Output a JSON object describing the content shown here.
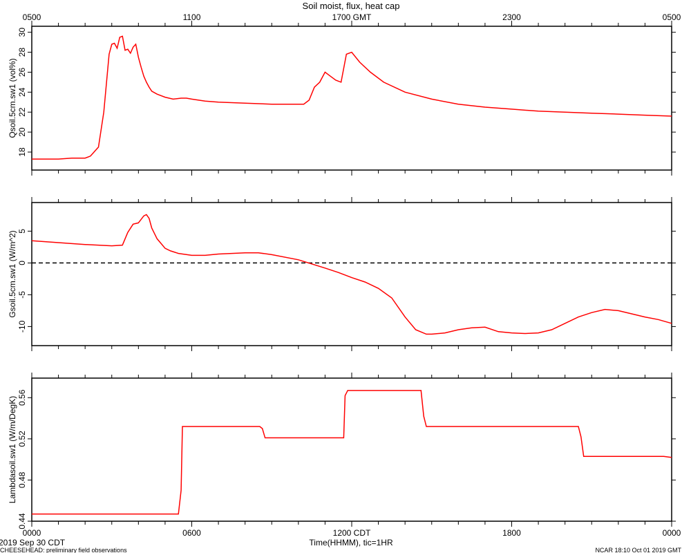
{
  "title": "Soil moist, flux, heat cap",
  "top_axis": {
    "ticks": [
      "0500",
      "1100",
      "1700 GMT",
      "2300",
      "0500"
    ]
  },
  "bottom_axis": {
    "ticks": [
      "0000",
      "0600",
      "1200 CDT",
      "1800",
      "0000"
    ],
    "label": "Time(HHMM), tic=1HR"
  },
  "footer": {
    "date": "2019 Sep 30 CDT",
    "project": "CHEESEHEAD: preliminary field observations",
    "stamp": "NCAR 18:10 Oct 01 2019 GMT"
  },
  "colors": {
    "series": "#ff0000",
    "axes": "#000000"
  },
  "chart_data": [
    {
      "type": "line",
      "ylabel": "Qsoil.5cm.sw1 (vol%)",
      "ylim": [
        16.2,
        30.6
      ],
      "yticks": [
        18,
        20,
        22,
        24,
        26,
        28,
        30
      ],
      "yticklabels": [
        "18",
        "20",
        "22",
        "24",
        "26",
        "28",
        "30"
      ],
      "xlim": [
        0,
        24
      ],
      "x": [
        0,
        1,
        1.5,
        2,
        2.2,
        2.5,
        2.7,
        2.9,
        3.0,
        3.1,
        3.2,
        3.3,
        3.4,
        3.5,
        3.6,
        3.7,
        3.8,
        3.9,
        4.0,
        4.1,
        4.2,
        4.3,
        4.4,
        4.5,
        4.7,
        5.0,
        5.3,
        5.6,
        5.8,
        6.0,
        6.5,
        7.0,
        8.0,
        9.0,
        9.8,
        10.2,
        10.4,
        10.6,
        10.8,
        11.0,
        11.2,
        11.4,
        11.6,
        11.8,
        12.0,
        12.3,
        12.7,
        13.2,
        14,
        15,
        16,
        17,
        18,
        19,
        20,
        21,
        22,
        23,
        24
      ],
      "series": [
        {
          "values": [
            17.3,
            17.3,
            17.4,
            17.4,
            17.6,
            18.5,
            22.0,
            27.8,
            28.8,
            28.9,
            28.4,
            29.5,
            29.6,
            28.2,
            28.3,
            27.9,
            28.5,
            28.8,
            27.5,
            26.5,
            25.6,
            25.0,
            24.5,
            24.1,
            23.8,
            23.5,
            23.3,
            23.4,
            23.4,
            23.3,
            23.1,
            23.0,
            22.9,
            22.8,
            22.8,
            22.8,
            23.2,
            24.5,
            25.0,
            26.0,
            25.6,
            25.2,
            25.0,
            27.8,
            28.0,
            27.0,
            26.0,
            25.0,
            24.0,
            23.3,
            22.8,
            22.5,
            22.3,
            22.1,
            22.0,
            21.9,
            21.8,
            21.7,
            21.6
          ]
        }
      ]
    },
    {
      "type": "line",
      "ylabel": "Gsoil.5cm.sw1 (W/m^2)",
      "ylim": [
        -13,
        9.5
      ],
      "yticks": [
        -10,
        -5,
        0,
        5
      ],
      "yticklabels": [
        "-10",
        "-5",
        "0",
        "5"
      ],
      "reference_line": 0,
      "xlim": [
        0,
        24
      ],
      "x": [
        0,
        1,
        2,
        3,
        3.4,
        3.6,
        3.8,
        4.0,
        4.2,
        4.3,
        4.4,
        4.5,
        4.7,
        4.9,
        5.0,
        5.2,
        5.5,
        6.0,
        6.5,
        7.0,
        7.5,
        8.0,
        8.5,
        9,
        10,
        11,
        11.5,
        12,
        12.5,
        13,
        13.5,
        14,
        14.4,
        14.8,
        15,
        15.5,
        16,
        16.5,
        17,
        17.5,
        18,
        18.5,
        19,
        19.5,
        20,
        20.5,
        21,
        21.5,
        22,
        22.5,
        23,
        23.5,
        24
      ],
      "series": [
        {
          "values": [
            3.5,
            3.2,
            2.9,
            2.7,
            2.8,
            4.8,
            6.1,
            6.3,
            7.4,
            7.6,
            7.0,
            5.5,
            3.8,
            2.8,
            2.3,
            1.9,
            1.5,
            1.2,
            1.2,
            1.4,
            1.5,
            1.6,
            1.6,
            1.3,
            0.5,
            -0.8,
            -1.5,
            -2.3,
            -3.0,
            -4.0,
            -5.5,
            -8.5,
            -10.5,
            -11.2,
            -11.2,
            -11.0,
            -10.5,
            -10.2,
            -10.1,
            -10.8,
            -11.0,
            -11.1,
            -11.0,
            -10.5,
            -9.5,
            -8.5,
            -7.8,
            -7.3,
            -7.5,
            -8.0,
            -8.5,
            -8.9,
            -9.5
          ]
        }
      ]
    },
    {
      "type": "line",
      "ylabel": "Lambdasoil.sw1 (W/m/DegK)",
      "ylim": [
        0.44,
        0.579
      ],
      "yticks": [
        0.44,
        0.48,
        0.52,
        0.56
      ],
      "yticklabels": [
        "0.44",
        "0.48",
        "0.52",
        "0.56"
      ],
      "xlim": [
        0,
        24
      ],
      "x": [
        0,
        5.5,
        5.6,
        5.65,
        8.55,
        8.65,
        8.75,
        11.7,
        11.75,
        11.85,
        14.6,
        14.7,
        14.8,
        20.5,
        20.6,
        20.7,
        23.7,
        24
      ],
      "series": [
        {
          "values": [
            0.447,
            0.447,
            0.47,
            0.532,
            0.532,
            0.53,
            0.521,
            0.521,
            0.562,
            0.567,
            0.567,
            0.542,
            0.532,
            0.532,
            0.522,
            0.503,
            0.503,
            0.502
          ]
        }
      ]
    }
  ]
}
